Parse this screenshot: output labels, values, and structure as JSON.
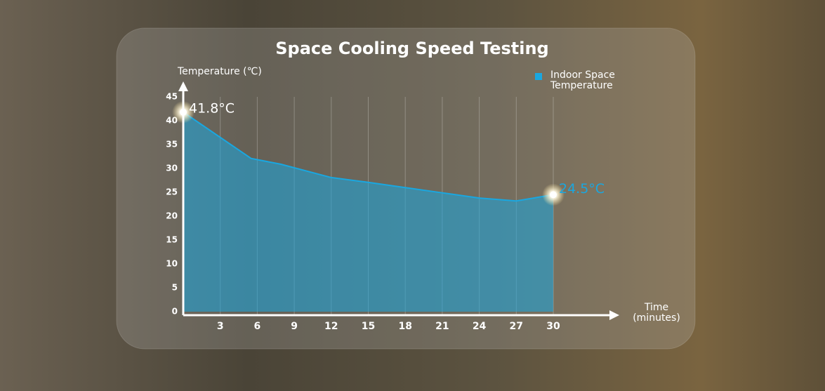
{
  "chart_data": {
    "type": "area",
    "title": "Space Cooling Speed Testing",
    "y_label": "Temperature (℃)",
    "x_label": "Time (minutes)",
    "x": [
      0,
      5.5,
      7.9,
      12,
      15,
      18,
      21,
      24,
      27,
      30
    ],
    "series": [
      {
        "name": "Indoor Space Temperature",
        "color": "#1aa7e0",
        "values": [
          41.8,
          32.1,
          30.9,
          28.1,
          27.1,
          26.0,
          24.9,
          23.8,
          23.2,
          24.5
        ],
        "value_labels": [
          "41.8°C",
          null,
          null,
          null,
          null,
          null,
          null,
          null,
          null,
          "24.5°C"
        ]
      }
    ],
    "xlim": [
      0,
      30
    ],
    "xticks": [
      3,
      6,
      9,
      12,
      15,
      18,
      21,
      24,
      27,
      30
    ],
    "ylim": [
      0,
      45
    ],
    "yticks": [
      0,
      5,
      10,
      15,
      20,
      25,
      30,
      35,
      40,
      45
    ],
    "grid": true,
    "legend": "top-right"
  }
}
